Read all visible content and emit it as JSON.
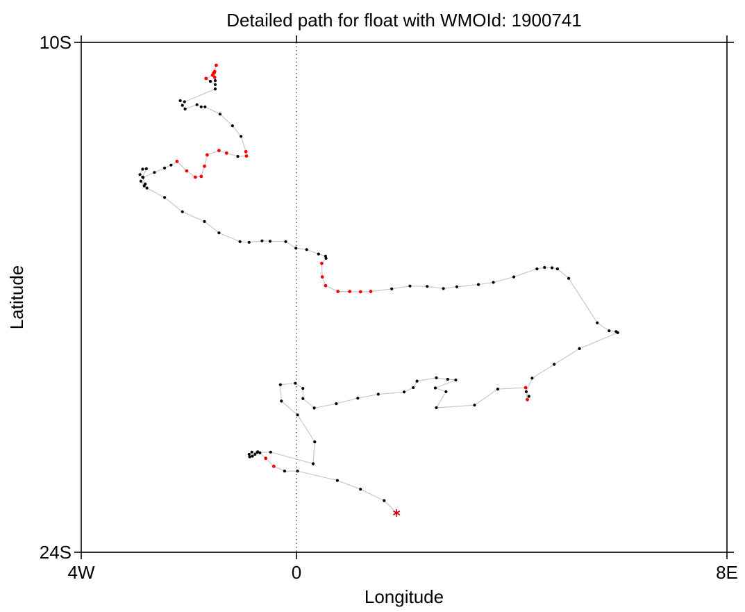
{
  "chart_data": {
    "type": "scatter",
    "title": "Detailed path for float with WMOId: 1900741",
    "xlabel": "Longitude",
    "ylabel": "Latitude",
    "xlim": [
      -4,
      8
    ],
    "ylim": [
      -24,
      -10
    ],
    "x_ticks": [
      {
        "value": -4,
        "label": "4W"
      },
      {
        "value": 0,
        "label": "0"
      },
      {
        "value": 8,
        "label": "8E"
      }
    ],
    "y_ticks": [
      {
        "value": -10,
        "label": "10S"
      },
      {
        "value": -24,
        "label": "24S"
      }
    ],
    "reference_line": {
      "x": 0,
      "style": "dotted"
    },
    "grid": false,
    "colors": {
      "normal_point": "#000000",
      "flagged_point": "#ff0000",
      "path_line": "#c8c8c8",
      "end_marker": "#cc0000"
    },
    "end_marker": {
      "x": 1.86,
      "y": -22.92,
      "symbol": "*"
    },
    "series": [
      {
        "points": [
          [
            1.86,
            -22.92,
            0
          ],
          [
            1.63,
            -22.58,
            0
          ],
          [
            1.19,
            -22.27,
            0
          ],
          [
            0.76,
            -22.03,
            0
          ],
          [
            0.02,
            -21.77,
            0
          ],
          [
            -0.22,
            -21.77,
            0
          ],
          [
            -0.42,
            -21.64,
            1
          ],
          [
            -0.57,
            -21.42,
            1
          ],
          [
            -0.68,
            -21.27,
            0
          ],
          [
            -0.72,
            -21.24,
            0
          ],
          [
            -0.77,
            -21.31,
            0
          ],
          [
            -0.82,
            -21.36,
            0
          ],
          [
            -0.87,
            -21.38,
            0
          ],
          [
            -0.88,
            -21.31,
            0
          ],
          [
            -0.83,
            -21.25,
            0
          ],
          [
            -0.73,
            -21.26,
            0
          ],
          [
            -0.48,
            -21.25,
            0
          ],
          [
            0.31,
            -21.57,
            0
          ],
          [
            0.34,
            -20.97,
            0
          ],
          [
            0.02,
            -20.23,
            0
          ],
          [
            -0.28,
            -19.85,
            0
          ],
          [
            -0.3,
            -19.4,
            0
          ],
          [
            -0.02,
            -19.36,
            0
          ],
          [
            0.12,
            -19.5,
            0
          ],
          [
            0.12,
            -19.78,
            0
          ],
          [
            0.33,
            -20.04,
            0
          ],
          [
            0.74,
            -19.92,
            0
          ],
          [
            1.14,
            -19.77,
            0
          ],
          [
            1.52,
            -19.66,
            0
          ],
          [
            2.0,
            -19.6,
            0
          ],
          [
            2.17,
            -19.48,
            0
          ],
          [
            2.24,
            -19.3,
            0
          ],
          [
            2.6,
            -19.21,
            0
          ],
          [
            2.81,
            -19.25,
            0
          ],
          [
            2.96,
            -19.27,
            0
          ],
          [
            2.58,
            -19.49,
            0
          ],
          [
            2.78,
            -19.59,
            0
          ],
          [
            2.6,
            -20.03,
            0
          ],
          [
            3.31,
            -19.96,
            0
          ],
          [
            3.74,
            -19.52,
            0
          ],
          [
            4.26,
            -19.48,
            1
          ],
          [
            4.29,
            -19.81,
            1
          ],
          [
            4.32,
            -19.72,
            0
          ],
          [
            4.27,
            -19.59,
            0
          ],
          [
            4.38,
            -19.22,
            0
          ],
          [
            4.79,
            -18.84,
            0
          ],
          [
            5.26,
            -18.41,
            0
          ],
          [
            5.97,
            -17.97,
            0
          ],
          [
            5.94,
            -17.94,
            0
          ],
          [
            5.81,
            -17.92,
            0
          ],
          [
            5.59,
            -17.7,
            0
          ],
          [
            5.06,
            -16.48,
            0
          ],
          [
            4.85,
            -16.22,
            0
          ],
          [
            4.75,
            -16.19,
            0
          ],
          [
            4.61,
            -16.18,
            0
          ],
          [
            4.47,
            -16.22,
            0
          ],
          [
            4.04,
            -16.44,
            0
          ],
          [
            3.66,
            -16.59,
            0
          ],
          [
            3.38,
            -16.65,
            0
          ],
          [
            2.98,
            -16.71,
            0
          ],
          [
            2.73,
            -16.76,
            0
          ],
          [
            2.43,
            -16.7,
            0
          ],
          [
            2.11,
            -16.69,
            0
          ],
          [
            1.77,
            -16.77,
            0
          ],
          [
            1.38,
            -16.84,
            1
          ],
          [
            1.19,
            -16.85,
            1
          ],
          [
            0.99,
            -16.84,
            1
          ],
          [
            0.77,
            -16.84,
            1
          ],
          [
            0.54,
            -16.68,
            1
          ],
          [
            0.48,
            -16.44,
            1
          ],
          [
            0.47,
            -16.07,
            1
          ],
          [
            0.55,
            -15.93,
            0
          ],
          [
            0.54,
            -15.87,
            0
          ],
          [
            0.41,
            -15.81,
            0
          ],
          [
            0.19,
            -15.69,
            0
          ],
          [
            -0.01,
            -15.65,
            0
          ],
          [
            -0.2,
            -15.47,
            0
          ],
          [
            -0.49,
            -15.46,
            0
          ],
          [
            -0.64,
            -15.45,
            0
          ],
          [
            -0.88,
            -15.49,
            0
          ],
          [
            -1.05,
            -15.47,
            0
          ],
          [
            -1.44,
            -15.23,
            0
          ],
          [
            -1.71,
            -14.92,
            0
          ],
          [
            -2.12,
            -14.65,
            0
          ],
          [
            -2.45,
            -14.26,
            0
          ],
          [
            -2.78,
            -14.0,
            0
          ],
          [
            -2.83,
            -13.94,
            0
          ],
          [
            -2.89,
            -13.81,
            0
          ],
          [
            -2.81,
            -13.89,
            0
          ],
          [
            -2.86,
            -13.7,
            0
          ],
          [
            -2.79,
            -13.47,
            0
          ],
          [
            -2.86,
            -13.48,
            0
          ],
          [
            -2.91,
            -13.63,
            0
          ],
          [
            -2.85,
            -13.71,
            0
          ],
          [
            -2.64,
            -13.57,
            0
          ],
          [
            -2.45,
            -13.45,
            0
          ],
          [
            -2.33,
            -13.37,
            0
          ],
          [
            -2.22,
            -13.27,
            1
          ],
          [
            -2.04,
            -13.53,
            1
          ],
          [
            -1.88,
            -13.7,
            1
          ],
          [
            -1.77,
            -13.68,
            1
          ],
          [
            -1.71,
            -13.4,
            1
          ],
          [
            -1.66,
            -13.09,
            1
          ],
          [
            -1.44,
            -12.97,
            1
          ],
          [
            -1.3,
            -13.04,
            1
          ],
          [
            -1.09,
            -13.13,
            0
          ],
          [
            -0.93,
            -13.12,
            1
          ],
          [
            -0.94,
            -13.0,
            1
          ],
          [
            -1.03,
            -12.58,
            0
          ],
          [
            -1.19,
            -12.29,
            0
          ],
          [
            -1.42,
            -11.97,
            0
          ],
          [
            -1.7,
            -11.77,
            0
          ],
          [
            -1.77,
            -11.77,
            0
          ],
          [
            -1.85,
            -11.71,
            0
          ],
          [
            -2.07,
            -11.83,
            0
          ],
          [
            -2.12,
            -11.73,
            0
          ],
          [
            -2.16,
            -11.6,
            0
          ],
          [
            -2.08,
            -11.63,
            0
          ],
          [
            -1.51,
            -11.28,
            0
          ],
          [
            -1.51,
            -11.16,
            0
          ],
          [
            -1.6,
            -11.07,
            0
          ],
          [
            -1.68,
            -10.99,
            1
          ],
          [
            -1.56,
            -10.9,
            1
          ],
          [
            -1.52,
            -10.96,
            1
          ],
          [
            -1.53,
            -10.84,
            1
          ],
          [
            -1.51,
            -11.05,
            0
          ],
          [
            -1.52,
            -10.8,
            1
          ],
          [
            -1.54,
            -10.84,
            1
          ],
          [
            -1.49,
            -10.63,
            1
          ]
        ]
      }
    ]
  }
}
